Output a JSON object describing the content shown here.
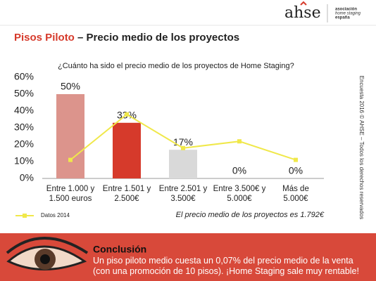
{
  "header": {
    "title_highlight": "Pisos Piloto",
    "title_rest": "– Precio medio de los proyectos"
  },
  "logo": {
    "name": "ahse",
    "line1": "asociación",
    "line2": "home staging",
    "line3": "españa"
  },
  "side_text": "Encuesta 2016 © AHSE – Todos los derechos reservados",
  "chart_data": {
    "type": "bar",
    "title": "¿Cuánto ha sido el precio medio de los proyectos de Home Staging?",
    "categories": [
      "Entre 1.000 y\n1.500 euros",
      "Entre 1.501 y\n2.500€",
      "Entre 2.501 y\n3.500€",
      "Entre 3.500€ y\n5.000€",
      "Más de\n5.000€"
    ],
    "series": [
      {
        "type": "bar",
        "values": [
          50,
          33,
          17,
          0,
          0
        ],
        "value_labels": [
          "50%",
          "33%",
          "17%",
          "0%",
          "0%"
        ],
        "colors": [
          "#dc948c",
          "#d63a2b",
          "#d9d9d9",
          "#d9d9d9",
          "#d9d9d9"
        ]
      },
      {
        "type": "line",
        "name": "Datos 2014",
        "color": "#f0e84a",
        "values": [
          11,
          38,
          18,
          22,
          11
        ]
      }
    ],
    "ylim": [
      0,
      60
    ],
    "yticks": [
      {
        "value": 0,
        "label": "0%"
      },
      {
        "value": 10,
        "label": "10%"
      },
      {
        "value": 20,
        "label": "20%"
      },
      {
        "value": 30,
        "label": "30%"
      },
      {
        "value": 40,
        "label": "40%"
      },
      {
        "value": 50,
        "label": "50%"
      },
      {
        "value": 60,
        "label": "60%"
      }
    ],
    "grid": false,
    "legend": "bottom-left",
    "note": "El precio medio de los proyectos es 1.792€"
  },
  "conclusion": {
    "title": "Conclusión",
    "text": "Un piso piloto medio cuesta un 0,07% del precio medio de la venta (con una promoción de 10 pisos). ¡Home Staging sale muy rentable!"
  }
}
